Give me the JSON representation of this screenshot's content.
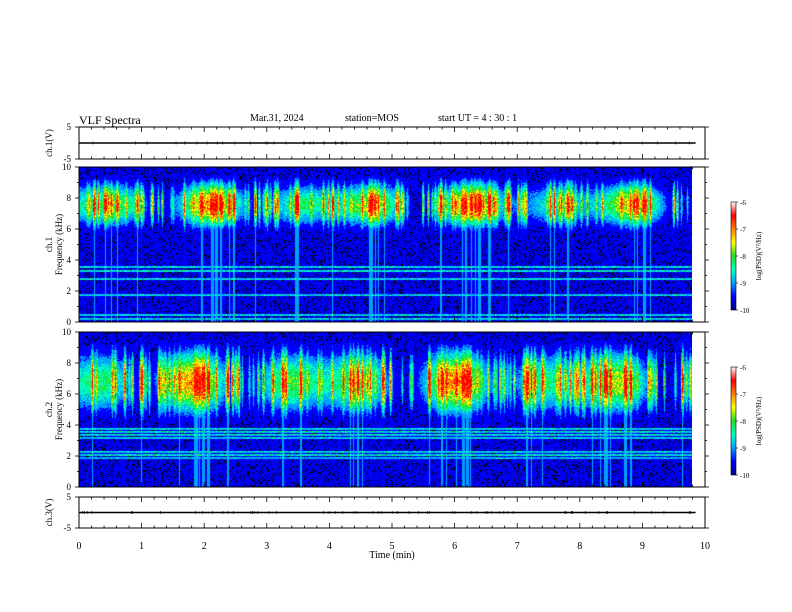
{
  "header": {
    "title": "VLF Spectra",
    "date": "Mar.31, 2024",
    "station": "station=MOS",
    "start": "start  UT =   4 : 30 : 1"
  },
  "chart_data": [
    {
      "type": "line",
      "panel": "ch1-waveform",
      "ylabel": "ch.1(V)",
      "ylim": [
        -5,
        5
      ],
      "yticks": [
        "5",
        "-5"
      ],
      "series": [
        {
          "values_note": "",
          "values": [
            0,
            0,
            0,
            0,
            0,
            0,
            0,
            0,
            0,
            0,
            0
          ]
        }
      ],
      "x": [
        0,
        1,
        2,
        3,
        4,
        5,
        6,
        7,
        8,
        9,
        9.85
      ]
    },
    {
      "type": "heatmap",
      "panel": "ch1-spectrogram",
      "ylabel": "ch.1\nFrequency (kHz)",
      "ylim": [
        0,
        10
      ],
      "yticks": [
        "0",
        "2",
        "4",
        "6",
        "8",
        "10"
      ],
      "xlim": [
        0,
        10
      ],
      "colorbar": {
        "label": "log(PSD)(V²/Hz)",
        "range": [
          -10,
          -6
        ],
        "ticks": [
          "-6",
          "-7",
          "-8",
          "-9",
          "-10"
        ]
      }
    },
    {
      "type": "heatmap",
      "panel": "ch2-spectrogram",
      "ylabel": "ch.2\nFrequency (kHz)",
      "ylim": [
        0,
        10
      ],
      "yticks": [
        "0",
        "2",
        "4",
        "6",
        "8",
        "10"
      ],
      "xlim": [
        0,
        10
      ],
      "colorbar": {
        "label": "log(PSD)(V²/Hz)",
        "range": [
          -10,
          -6
        ],
        "ticks": [
          "-6",
          "-7",
          "-8",
          "-9",
          "-10"
        ]
      }
    },
    {
      "type": "line",
      "panel": "ch3-waveform",
      "ylabel": "ch.3(V)",
      "ylim": [
        -5,
        5
      ],
      "yticks": [
        "5",
        "-5"
      ],
      "series": [
        {
          "values": [
            0,
            0,
            0,
            0,
            0,
            0,
            0,
            0,
            0,
            0,
            0
          ]
        }
      ],
      "x": [
        0,
        1,
        2,
        3,
        4,
        5,
        6,
        7,
        8,
        9,
        9.85
      ]
    }
  ],
  "xaxis": {
    "label": "Time  (min)",
    "ticks": [
      "0",
      "1",
      "2",
      "3",
      "4",
      "5",
      "6",
      "7",
      "8",
      "9",
      "10"
    ],
    "xlim": [
      0,
      10
    ]
  },
  "colors": {
    "background": "#000000",
    "colormap": [
      "#00008c",
      "#0000ff",
      "#00a0ff",
      "#00ffc0",
      "#20e020",
      "#ffff00",
      "#ff8000",
      "#ff0000",
      "#ffffff"
    ]
  }
}
